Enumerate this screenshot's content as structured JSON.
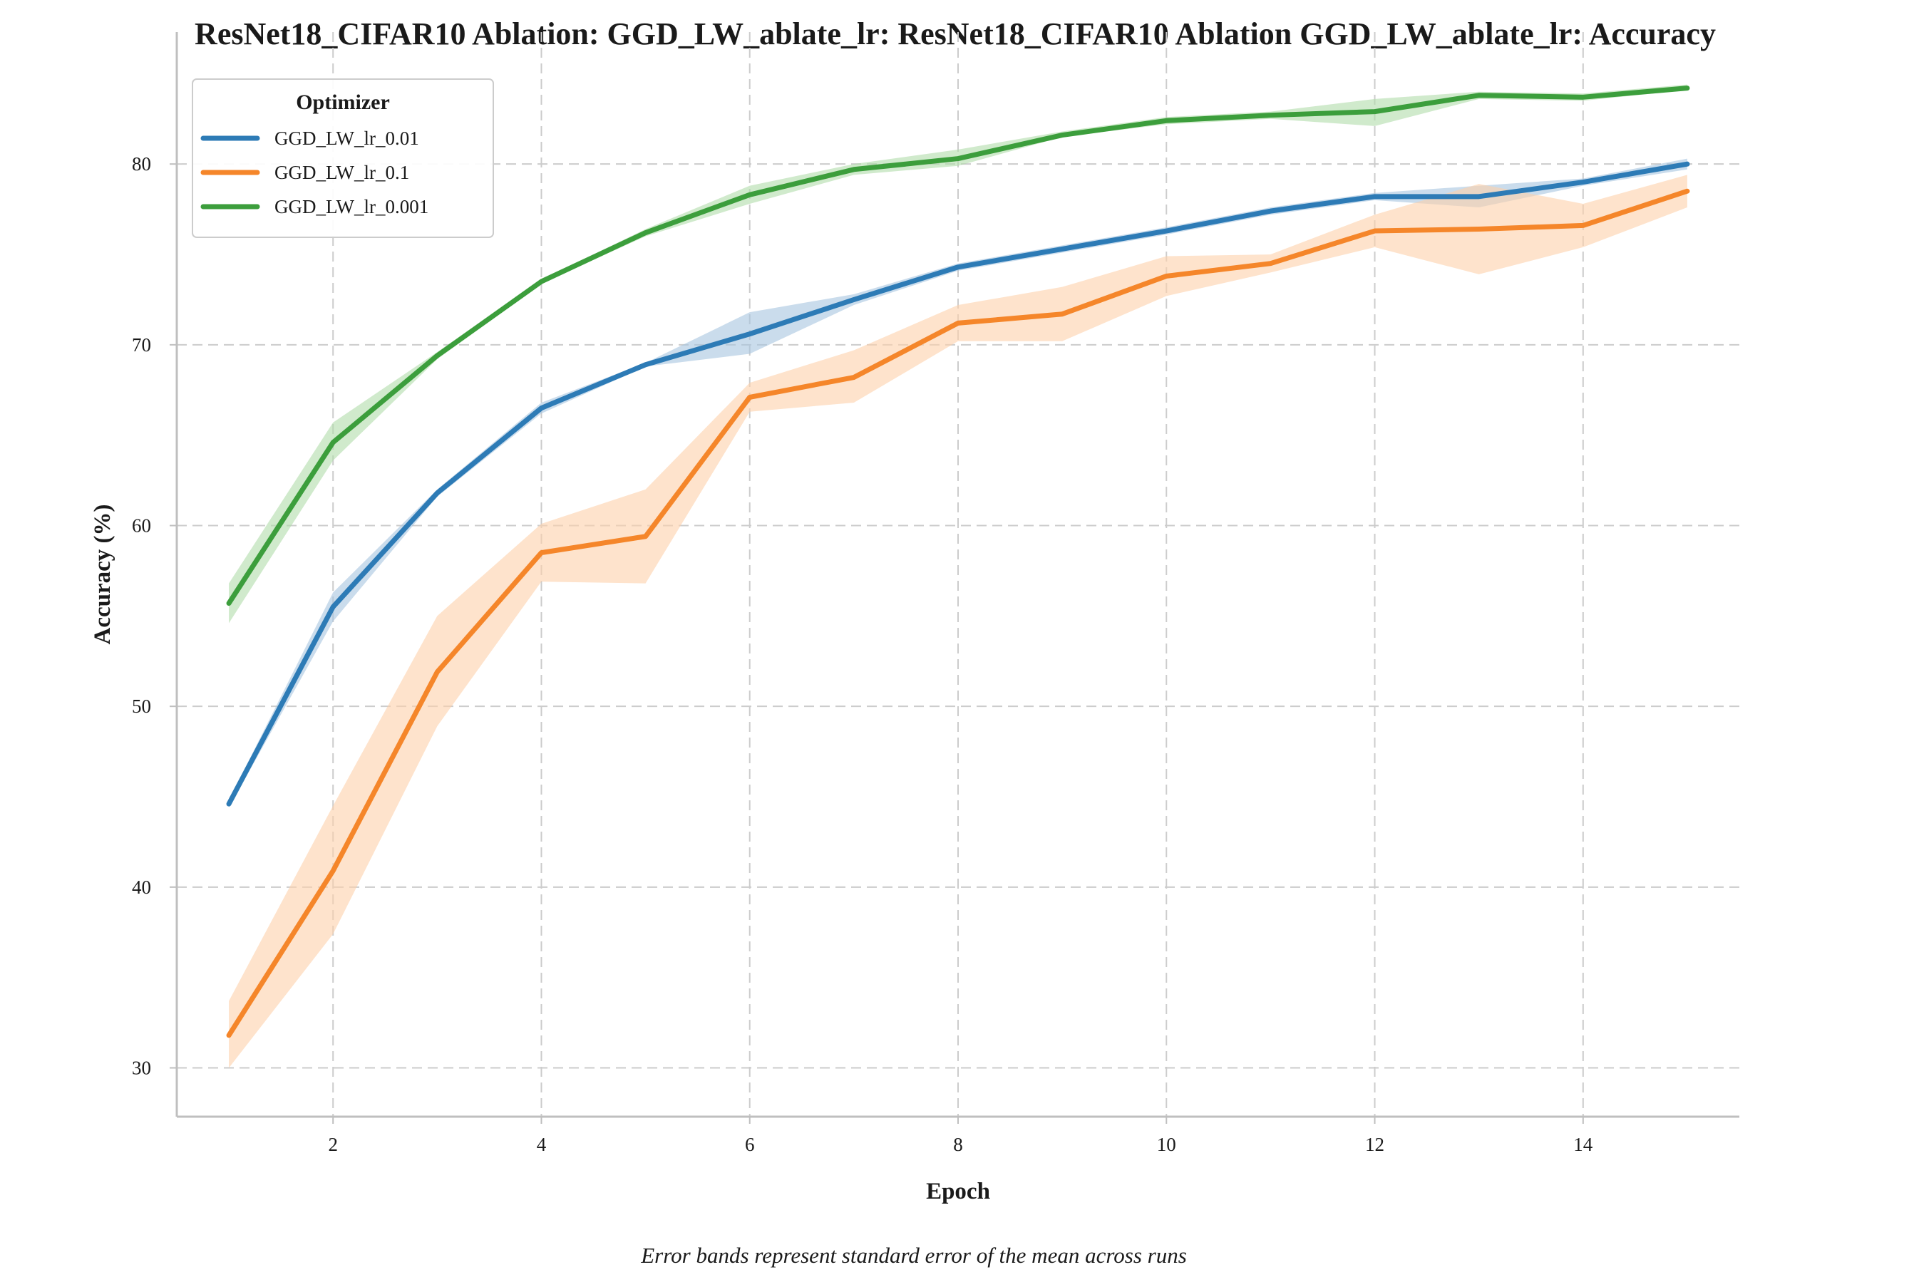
{
  "chart_data": {
    "type": "line",
    "title": "ResNet18_CIFAR10 Ablation: GGD_LW_ablate_lr: ResNet18_CIFAR10 Ablation GGD_LW_ablate_lr: Accuracy",
    "xlabel": "Epoch",
    "ylabel": "Accuracy (%)",
    "caption": "Error bands represent standard error of the mean across runs",
    "xlim": [
      0.5,
      15.5
    ],
    "ylim": [
      27.3,
      87.3
    ],
    "xticks": [
      2,
      4,
      6,
      8,
      10,
      12,
      14
    ],
    "yticks": [
      30,
      40,
      50,
      60,
      70,
      80
    ],
    "grid": true,
    "legend": {
      "title": "Optimizer",
      "position": "top-left"
    },
    "x": [
      1,
      2,
      3,
      4,
      5,
      6,
      7,
      8,
      9,
      10,
      11,
      12,
      13,
      14,
      15
    ],
    "series": [
      {
        "name": "GGD_LW_lr_0.01",
        "color": "#2d7bb6",
        "band_color": "#a6c4e0",
        "values": [
          44.6,
          55.5,
          61.8,
          66.5,
          68.9,
          70.6,
          72.5,
          74.3,
          75.3,
          76.3,
          77.4,
          78.2,
          78.2,
          79.0,
          80.0
        ],
        "lower": [
          44.4,
          54.7,
          61.6,
          66.2,
          68.8,
          69.5,
          72.2,
          74.1,
          75.1,
          76.1,
          77.2,
          78.0,
          77.6,
          78.8,
          79.7
        ],
        "upper": [
          44.8,
          56.3,
          62.0,
          66.8,
          69.0,
          71.8,
          72.8,
          74.5,
          75.5,
          76.5,
          77.6,
          78.4,
          78.8,
          79.2,
          80.3
        ]
      },
      {
        "name": "GGD_LW_lr_0.1",
        "color": "#f5862a",
        "band_color": "#fdd0aa",
        "values": [
          31.8,
          40.9,
          51.9,
          58.5,
          59.4,
          67.1,
          68.2,
          71.2,
          71.7,
          73.8,
          74.5,
          76.3,
          76.4,
          76.6,
          78.5
        ],
        "lower": [
          30.0,
          37.4,
          48.9,
          56.9,
          56.8,
          66.3,
          66.8,
          70.2,
          70.2,
          72.7,
          74.0,
          75.4,
          73.9,
          75.4,
          77.6
        ],
        "upper": [
          33.7,
          44.5,
          55.0,
          60.1,
          62.0,
          67.9,
          69.7,
          72.2,
          73.2,
          74.9,
          75.0,
          77.2,
          78.9,
          77.8,
          79.4
        ]
      },
      {
        "name": "GGD_LW_lr_0.001",
        "color": "#3c9e3c",
        "band_color": "#b0dcaa",
        "values": [
          55.7,
          64.6,
          69.4,
          73.5,
          76.2,
          78.3,
          79.7,
          80.3,
          81.6,
          82.4,
          82.7,
          82.9,
          83.8,
          83.7,
          84.2
        ],
        "lower": [
          54.6,
          63.6,
          69.2,
          73.4,
          76.0,
          77.8,
          79.4,
          79.9,
          81.5,
          82.2,
          82.5,
          82.1,
          83.6,
          83.5,
          84.1
        ],
        "upper": [
          56.8,
          65.7,
          69.6,
          73.6,
          76.4,
          78.8,
          80.0,
          80.8,
          81.8,
          82.6,
          82.9,
          83.6,
          84.0,
          83.9,
          84.4
        ]
      }
    ]
  }
}
